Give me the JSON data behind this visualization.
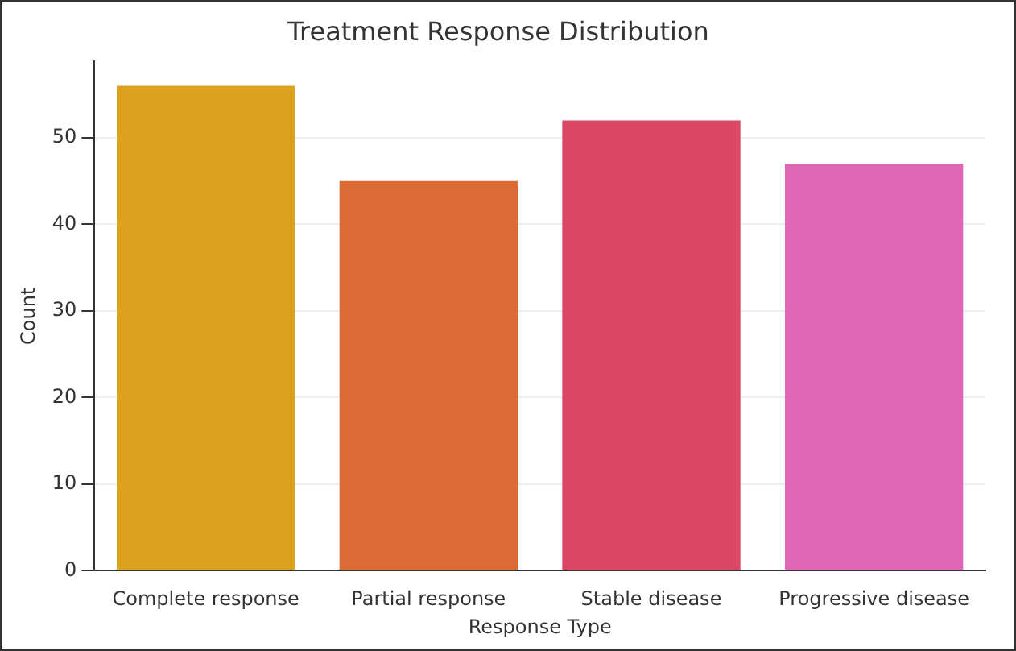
{
  "chart_data": {
    "type": "bar",
    "title": "Treatment Response Distribution",
    "xlabel": "Response Type",
    "ylabel": "Count",
    "categories": [
      "Complete response",
      "Partial response",
      "Stable disease",
      "Progressive disease"
    ],
    "values": [
      56,
      45,
      52,
      47
    ],
    "colors": [
      "#dca11d",
      "#dc6a35",
      "#dc4766",
      "#df67b5"
    ],
    "ylim": [
      0,
      58.8
    ],
    "yticks": [
      0,
      10,
      20,
      30,
      40,
      50
    ],
    "grid": "y"
  }
}
